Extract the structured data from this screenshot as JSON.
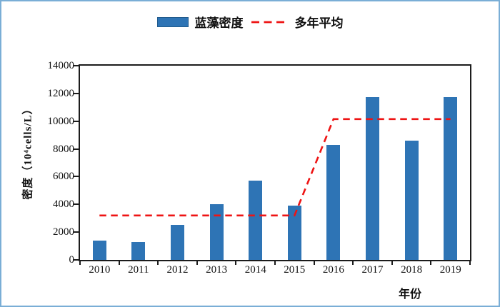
{
  "page": {
    "background": "#ffffff",
    "border_color": "#7aaed6"
  },
  "legend": {
    "bar_series_label": "蓝藻密度",
    "line_series_label": "多年平均",
    "swatch_color": "#2e74b5",
    "swatch_border_color": "#215b8d",
    "line_color": "#ee1414"
  },
  "chart_data": {
    "type": "bar",
    "title": "",
    "xlabel": "年份",
    "ylabel": "密度（10⁴cells/L）",
    "categories": [
      "2010",
      "2011",
      "2012",
      "2013",
      "2014",
      "2015",
      "2016",
      "2017",
      "2018",
      "2019"
    ],
    "series": [
      {
        "name": "蓝藻密度",
        "type": "bar",
        "color": "#2e74b5",
        "values": [
          1400,
          1300,
          2500,
          4000,
          5700,
          3900,
          8300,
          11750,
          8600,
          11750
        ]
      },
      {
        "name": "多年平均",
        "type": "line",
        "style": "dashed",
        "color": "#ee1414",
        "values": [
          3200,
          3200,
          3200,
          3200,
          3200,
          3200,
          10150,
          10150,
          10150,
          10150
        ]
      }
    ],
    "ylim": [
      0,
      14000
    ],
    "y_ticks": [
      0,
      2000,
      4000,
      6000,
      8000,
      10000,
      12000,
      14000
    ],
    "grid": false,
    "legend_position": "top"
  }
}
